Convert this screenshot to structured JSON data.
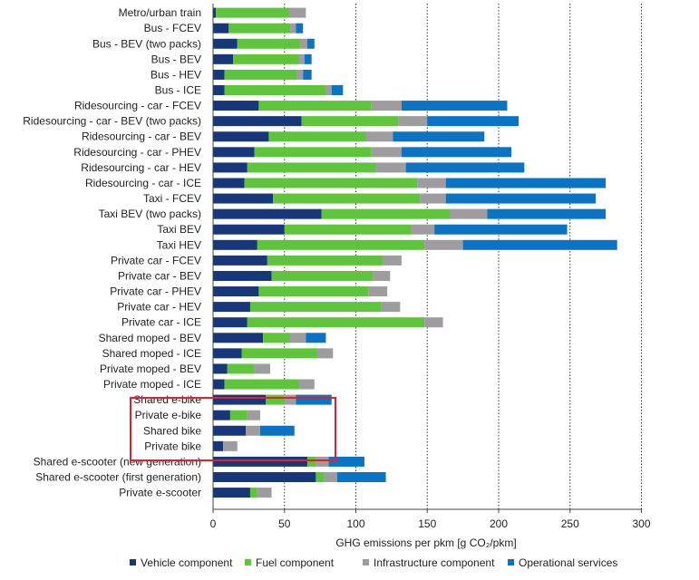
{
  "chart_data": {
    "type": "bar",
    "orientation": "horizontal",
    "stacked": true,
    "title": "",
    "xlabel": "GHG emissions per pkm [g CO₂/pkm]",
    "ylabel": "",
    "xlim": [
      0,
      300
    ],
    "xticks": [
      0,
      50,
      100,
      150,
      200,
      250,
      300
    ],
    "grid": "vertical dotted",
    "legend_position": "bottom",
    "categories": [
      "Metro/urban train",
      "Bus - FCEV",
      "Bus - BEV (two packs)",
      "Bus - BEV",
      "Bus - HEV",
      "Bus - ICE",
      "Ridesourcing - car - FCEV",
      "Ridesourcing - car - BEV (two packs)",
      "Ridesourcing - car - BEV",
      "Ridesourcing - car - PHEV",
      "Ridesourcing - car - HEV",
      "Ridesourcing - car - ICE",
      "Taxi - FCEV",
      "Taxi  BEV (two packs)",
      "Taxi  BEV",
      "Taxi  HEV",
      "Private car - FCEV",
      "Private car - BEV",
      "Private car - PHEV",
      "Private car - HEV",
      "Private car - ICE",
      "Shared moped - BEV",
      "Shared moped - ICE",
      "Private moped - BEV",
      "Private moped - ICE",
      "Shared e-bike",
      "Private e-bike",
      "Shared bike",
      "Private bike",
      "Shared e-scooter (new generation)",
      "Shared e-scooter (first generation)",
      "Private e-scooter"
    ],
    "series": [
      {
        "name": "Vehicle component",
        "color": "#17377a",
        "values": [
          2,
          11,
          17,
          14,
          8,
          8,
          32,
          62,
          39,
          29,
          24,
          22,
          42,
          76,
          50,
          31,
          38,
          41,
          32,
          26,
          24,
          35,
          20,
          10,
          8,
          37,
          12,
          23,
          7,
          66,
          72,
          26
        ]
      },
      {
        "name": "Fuel component",
        "color": "#5ec43c",
        "values": [
          51,
          43,
          44,
          46,
          51,
          71,
          79,
          68,
          68,
          82,
          90,
          121,
          103,
          90,
          89,
          117,
          81,
          71,
          77,
          92,
          124,
          19,
          53,
          19,
          52,
          13,
          12,
          0,
          0,
          6,
          6,
          5
        ]
      },
      {
        "name": "Infrastructure component",
        "color": "#9e9c9f",
        "values": [
          12,
          4,
          5,
          4,
          4,
          4,
          21,
          20,
          19,
          21,
          21,
          20,
          18,
          26,
          16,
          27,
          13,
          12,
          13,
          13,
          13,
          11,
          11,
          11,
          11,
          8,
          9,
          10,
          10,
          9,
          9,
          10
        ]
      },
      {
        "name": "Operational services",
        "color": "#0a73c4",
        "values": [
          0,
          5,
          5,
          5,
          6,
          8,
          74,
          64,
          64,
          77,
          83,
          112,
          105,
          83,
          93,
          108,
          0,
          0,
          0,
          0,
          0,
          14,
          0,
          0,
          0,
          25,
          0,
          24,
          0,
          25,
          34,
          0
        ]
      }
    ],
    "annotations": [
      {
        "type": "highlight-box",
        "color": "#e3202a",
        "categories": [
          "Shared e-bike",
          "Private e-bike",
          "Shared bike",
          "Private bike"
        ]
      }
    ]
  }
}
